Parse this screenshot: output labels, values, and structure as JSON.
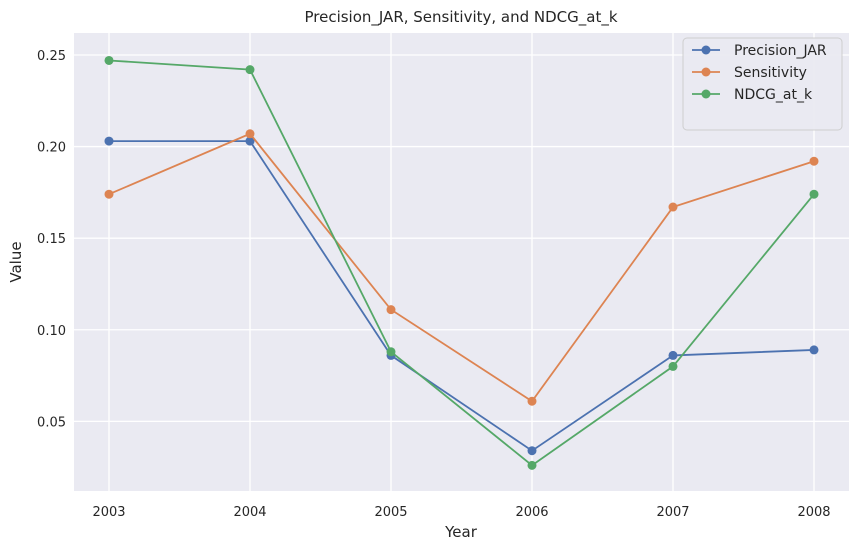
{
  "chart_data": {
    "type": "line",
    "title": "Precision_JAR, Sensitivity, and NDCG_at_k",
    "xlabel": "Year",
    "ylabel": "Value",
    "x": [
      "2003",
      "2004",
      "2005",
      "2006",
      "2007",
      "2008"
    ],
    "ylim": [
      0.012,
      0.262
    ],
    "yticks": [
      "0.05",
      "0.10",
      "0.15",
      "0.20",
      "0.25"
    ],
    "grid": true,
    "legend_position": "top-right",
    "series": [
      {
        "name": "Precision_JAR",
        "color": "#4c72b0",
        "values": [
          0.203,
          0.203,
          0.086,
          0.034,
          0.086,
          0.089
        ]
      },
      {
        "name": "Sensitivity",
        "color": "#dd8452",
        "values": [
          0.174,
          0.207,
          0.111,
          0.061,
          0.167,
          0.192
        ]
      },
      {
        "name": "NDCG_at_k",
        "color": "#55a868",
        "values": [
          0.247,
          0.242,
          0.088,
          0.026,
          0.08,
          0.174
        ]
      }
    ]
  }
}
